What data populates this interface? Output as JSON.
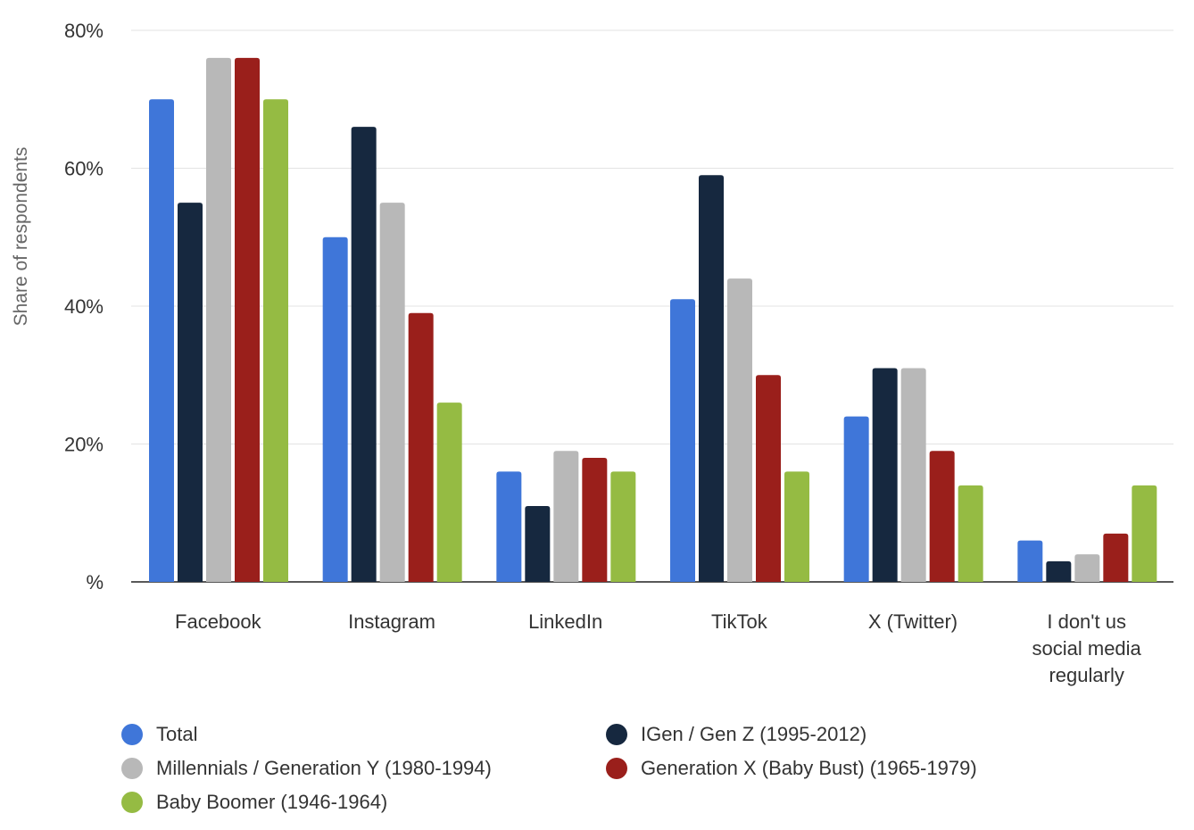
{
  "chart_data": {
    "type": "bar",
    "categories": [
      "Facebook",
      "Instagram",
      "LinkedIn",
      "TikTok",
      "X (Twitter)",
      "I don't us social media regularly"
    ],
    "series": [
      {
        "name": "Total",
        "color": "#3f76d9",
        "values": [
          70,
          50,
          16,
          41,
          24,
          6
        ]
      },
      {
        "name": "IGen / Gen Z (1995-2012)",
        "color": "#16283f",
        "values": [
          55,
          66,
          11,
          59,
          31,
          3
        ]
      },
      {
        "name": "Millennials / Generation Y (1980-1994)",
        "color": "#b8b8b8",
        "values": [
          76,
          55,
          19,
          44,
          31,
          4
        ]
      },
      {
        "name": "Generation X (Baby Bust) (1965-1979)",
        "color": "#9a1f1b",
        "values": [
          76,
          39,
          18,
          30,
          19,
          7
        ]
      },
      {
        "name": "Baby Boomer (1946-1964)",
        "color": "#95bb43",
        "values": [
          70,
          26,
          16,
          16,
          14,
          14
        ]
      }
    ],
    "ylabel": "Share of respondents",
    "ylim": [
      0,
      80
    ],
    "yticks": [
      "%",
      "20%",
      "40%",
      "60%",
      "80%"
    ],
    "grid": true,
    "legend": "bottom"
  }
}
